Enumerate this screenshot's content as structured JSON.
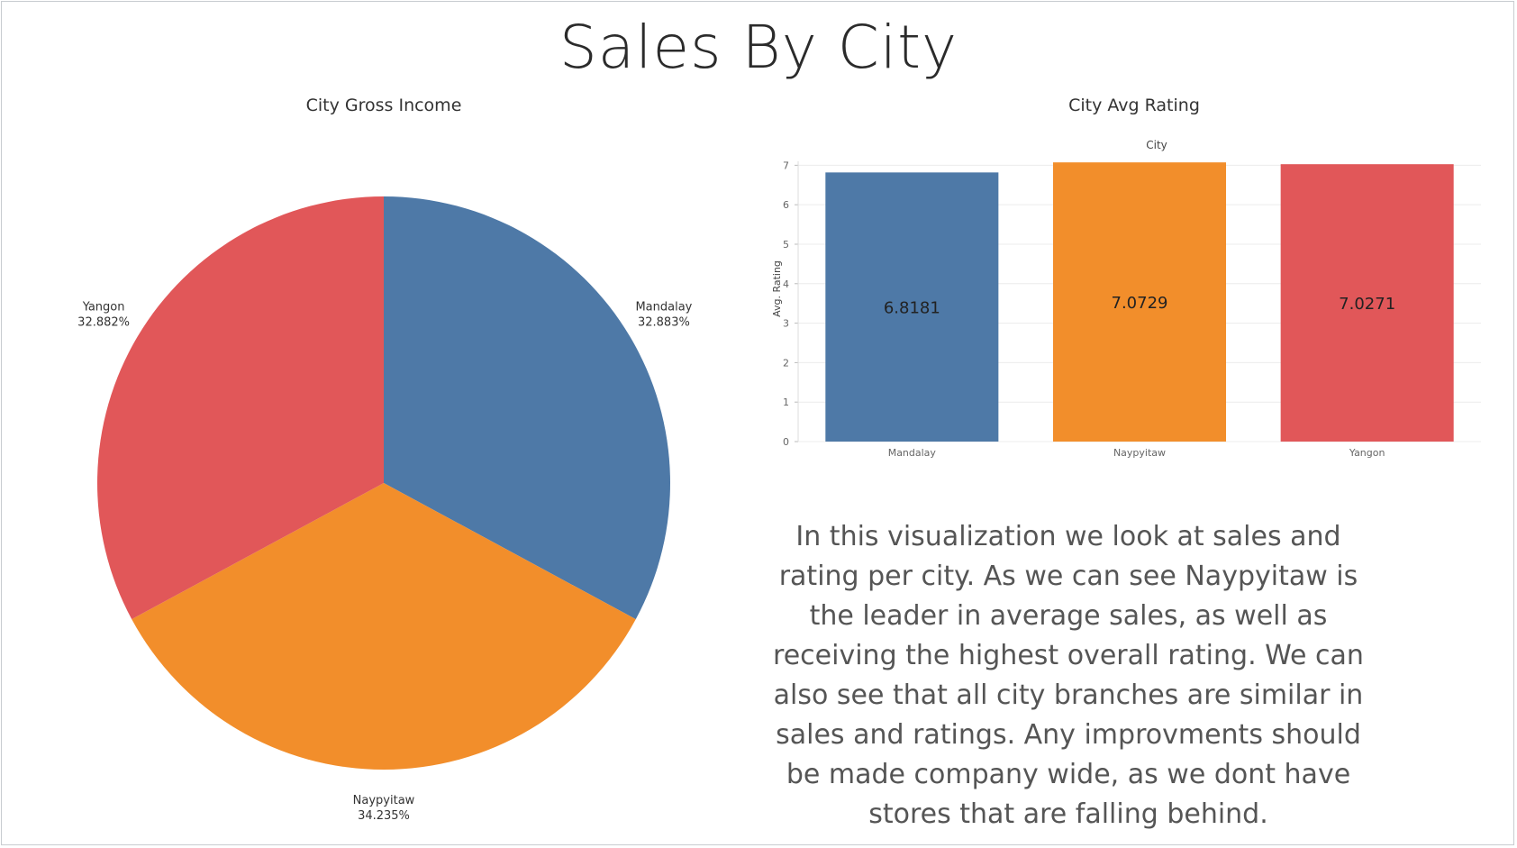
{
  "page": {
    "title": "Sales By City",
    "description": "In this visualization we look at sales and rating per city. As we can see Naypyitaw is the leader in average sales, as well as receiving the highest overall rating. We can also see that all city branches are similar in sales and ratings. Any improvments should be made company wide, as we dont have stores that are falling behind."
  },
  "colors": {
    "Mandalay": "#4e79a7",
    "Naypyitaw": "#f28e2b",
    "Yangon": "#e15759"
  },
  "chart_data": [
    {
      "type": "pie",
      "title": "City Gross Income",
      "slices": [
        {
          "label": "Mandalay",
          "value_label": "32.883%",
          "value": 32.883
        },
        {
          "label": "Naypyitaw",
          "value_label": "34.235%",
          "value": 34.235
        },
        {
          "label": "Yangon",
          "value_label": "32.882%",
          "value": 32.882
        }
      ]
    },
    {
      "type": "bar",
      "title": "City Avg Rating",
      "column_header": "City",
      "ylabel": "Avg. Rating",
      "categories": [
        "Mandalay",
        "Naypyitaw",
        "Yangon"
      ],
      "values": [
        6.8181,
        7.0729,
        7.0271
      ],
      "value_labels": [
        "6.8181",
        "7.0729",
        "7.0271"
      ],
      "ylim": [
        0,
        7.1
      ],
      "yticks": [
        "0",
        "1",
        "2",
        "3",
        "4",
        "5",
        "6",
        "7"
      ],
      "grid": true
    }
  ]
}
